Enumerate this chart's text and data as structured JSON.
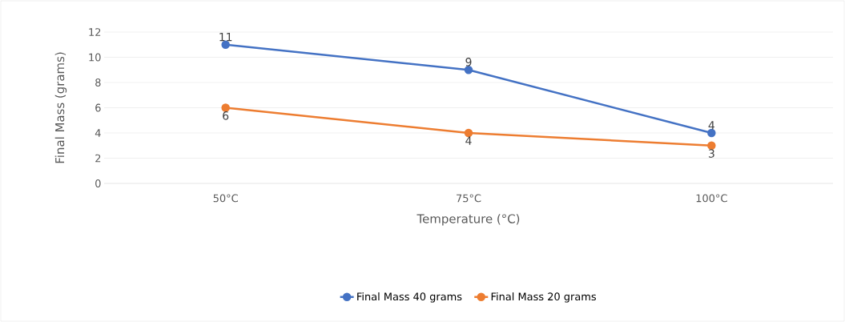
{
  "chart_data": {
    "type": "line",
    "xlabel": "Temperature (°C)",
    "ylabel": "Final Mass (grams)",
    "categories": [
      "50°C",
      "75°C",
      "100°C"
    ],
    "series": [
      {
        "name": "Final Mass 40 grams",
        "color": "#4472c4",
        "values": [
          11,
          9,
          4
        ]
      },
      {
        "name": "Final Mass 20 grams",
        "color": "#ed7d31",
        "values": [
          6,
          4,
          3
        ]
      }
    ],
    "ylim": [
      0,
      12
    ],
    "yticks": [
      0,
      2,
      4,
      6,
      8,
      10,
      12
    ],
    "grid": "y",
    "legend": "bottom",
    "marker": "circle",
    "line_style": "solid",
    "data_labels": true
  }
}
